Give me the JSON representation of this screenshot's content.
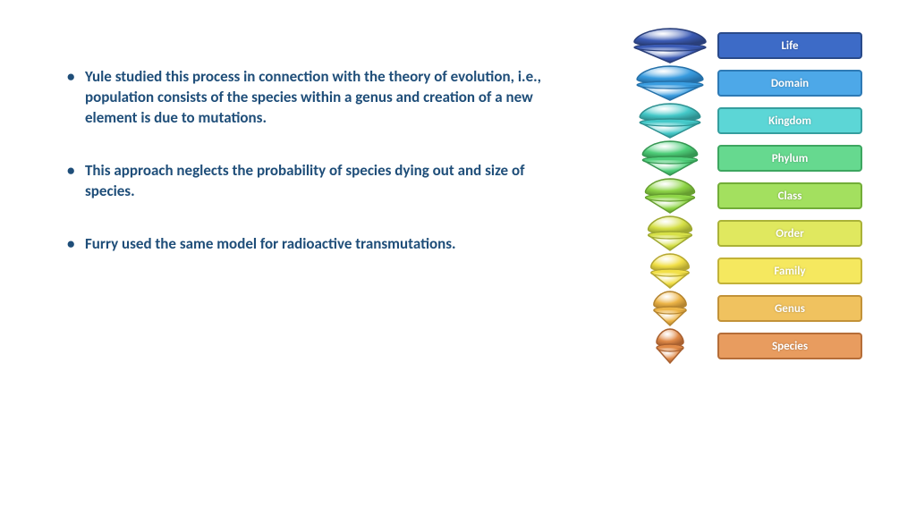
{
  "bullets": [
    "Yule studied this process in connection with the theory of evolution, i.e., population consists of the species within a genus and creation of a new element is due to mutations.",
    "This approach neglects the probability of species dying out and size of species.",
    "Furry used the same model for radioactive transmutations."
  ],
  "taxonomy": [
    {
      "label": "Life",
      "fill": "#3b5bb5",
      "border": "#2a3f7a",
      "box_bg": "#3d6bc7",
      "box_border": "#2a4a8a"
    },
    {
      "label": "Domain",
      "fill": "#3a9de0",
      "border": "#2570a8",
      "box_bg": "#4da8e8",
      "box_border": "#2e7ab5"
    },
    {
      "label": "Kingdom",
      "fill": "#45c9c9",
      "border": "#2e9090",
      "box_bg": "#5cd6d6",
      "box_border": "#359e9e"
    },
    {
      "label": "Phylum",
      "fill": "#4fcf7a",
      "border": "#359652",
      "box_bg": "#66d98f",
      "box_border": "#3da660"
    },
    {
      "label": "Class",
      "fill": "#8fd648",
      "border": "#669e30",
      "box_bg": "#a3e05f",
      "box_border": "#72ad38"
    },
    {
      "label": "Order",
      "fill": "#d6e048",
      "border": "#9ea830",
      "box_bg": "#e0e85f",
      "box_border": "#aab238"
    },
    {
      "label": "Family",
      "fill": "#f2e048",
      "border": "#b5a630",
      "box_bg": "#f5e85f",
      "box_border": "#c2b238"
    },
    {
      "label": "Genus",
      "fill": "#edb548",
      "border": "#b58530",
      "box_bg": "#f0c25f",
      "box_border": "#c29238"
    },
    {
      "label": "Species",
      "fill": "#e08a48",
      "border": "#a86030",
      "box_bg": "#e89c5f",
      "box_border": "#b56d38"
    }
  ],
  "text_color": "#1f4e79",
  "background_color": "#ffffff"
}
